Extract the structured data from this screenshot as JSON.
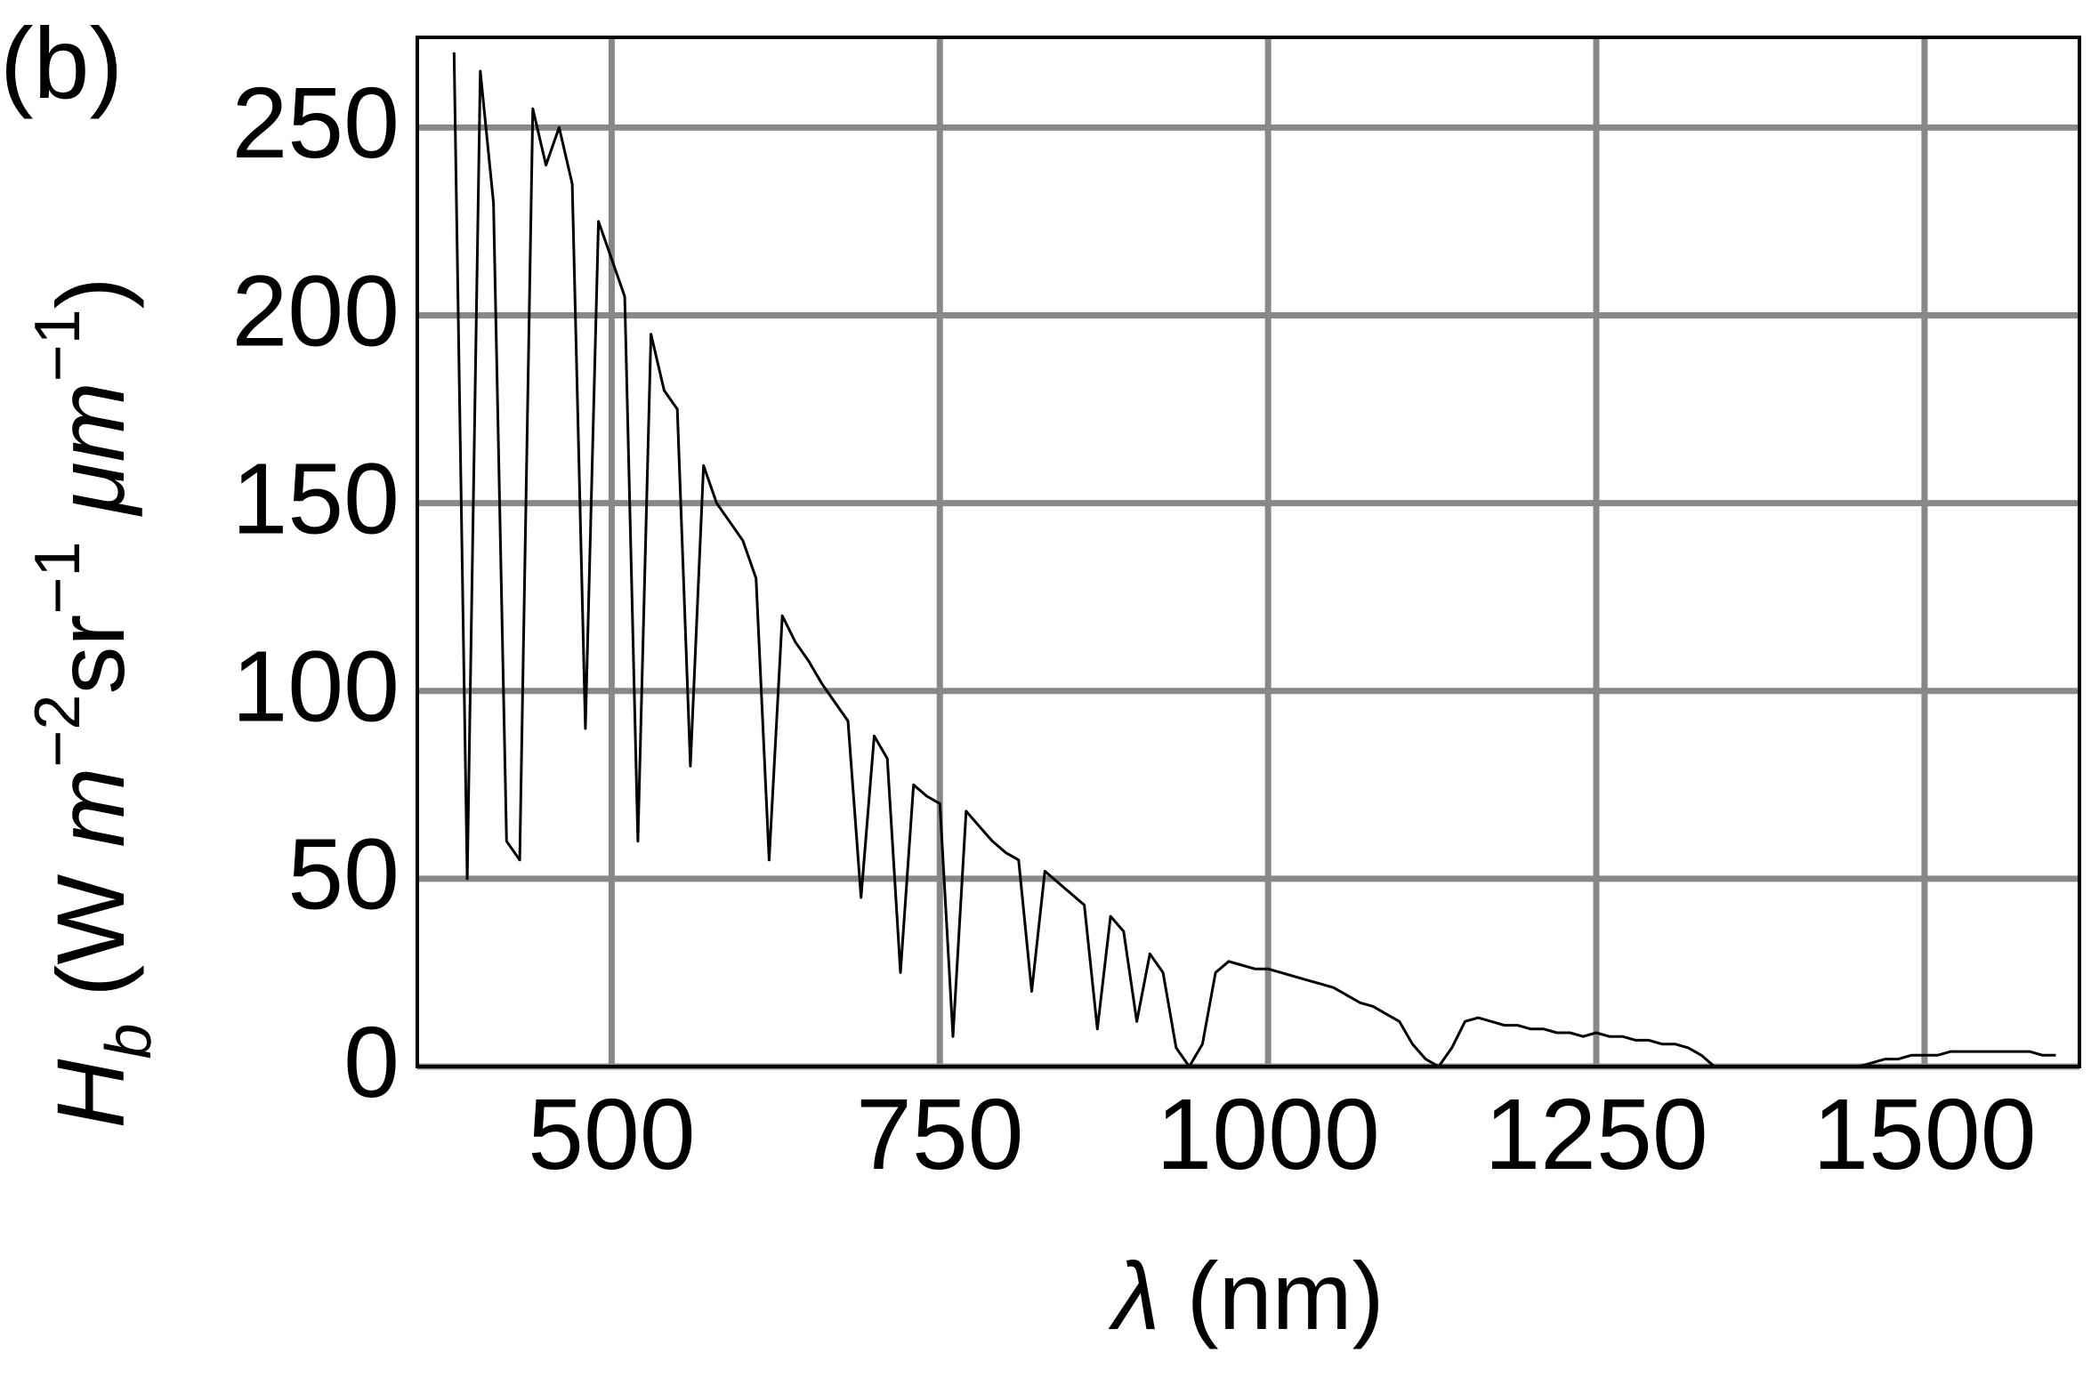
{
  "chart_data": {
    "type": "line",
    "annotation": "(b)",
    "ylabel": [
      "H",
      "b",
      " (W ",
      "m",
      "−2",
      "sr",
      "−1",
      " μm",
      "−1",
      ")"
    ],
    "xlabel": [
      "λ",
      " (nm)"
    ],
    "xlim": [
      352,
      1618
    ],
    "ylim": [
      0,
      274
    ],
    "xticks": [
      500,
      750,
      1000,
      1250,
      1500
    ],
    "yticks": [
      0,
      50,
      100,
      150,
      200,
      250
    ],
    "grid": true,
    "series": [
      {
        "color": "#000000",
        "x": [
          380,
          390,
          400,
          410,
          420,
          430,
          440,
          450,
          460,
          470,
          480,
          490,
          500,
          510,
          520,
          530,
          540,
          550,
          560,
          570,
          580,
          590,
          600,
          610,
          620,
          630,
          640,
          650,
          660,
          670,
          680,
          690,
          700,
          710,
          720,
          730,
          740,
          750,
          760,
          770,
          780,
          790,
          800,
          810,
          820,
          830,
          840,
          850,
          860,
          870,
          880,
          890,
          900,
          910,
          920,
          930,
          940,
          950,
          960,
          970,
          980,
          990,
          1000,
          1010,
          1020,
          1030,
          1040,
          1050,
          1060,
          1070,
          1080,
          1090,
          1100,
          1110,
          1120,
          1130,
          1140,
          1150,
          1160,
          1170,
          1180,
          1190,
          1200,
          1210,
          1220,
          1230,
          1240,
          1250,
          1260,
          1270,
          1280,
          1290,
          1300,
          1310,
          1320,
          1330,
          1340,
          1350,
          1360,
          1370,
          1380,
          1390,
          1400,
          1410,
          1420,
          1430,
          1440,
          1450,
          1460,
          1470,
          1480,
          1490,
          1500,
          1510,
          1520,
          1530,
          1540,
          1550,
          1560,
          1570,
          1580,
          1590,
          1600
        ],
        "values": [
          270,
          50,
          265,
          230,
          60,
          55,
          255,
          240,
          250,
          235,
          90,
          225,
          215,
          205,
          60,
          195,
          180,
          175,
          80,
          160,
          150,
          145,
          140,
          130,
          55,
          120,
          113,
          108,
          102,
          97,
          92,
          45,
          88,
          82,
          25,
          75,
          72,
          70,
          8,
          68,
          64,
          60,
          57,
          55,
          20,
          52,
          49,
          46,
          43,
          10,
          40,
          36,
          12,
          30,
          25,
          5,
          0,
          6,
          25,
          28,
          27,
          26,
          26,
          25,
          24,
          23,
          22,
          21,
          19,
          17,
          16,
          14,
          12,
          6,
          2,
          0,
          5,
          12,
          13,
          12,
          11,
          11,
          10,
          10,
          9,
          9,
          8,
          9,
          8,
          8,
          7,
          7,
          6,
          6,
          5,
          3,
          0,
          null,
          null,
          null,
          null,
          null,
          null,
          null,
          null,
          null,
          null,
          0,
          1,
          2,
          2,
          3,
          3,
          3,
          4,
          4,
          4,
          4,
          4,
          4,
          4,
          3,
          3
        ]
      }
    ]
  }
}
